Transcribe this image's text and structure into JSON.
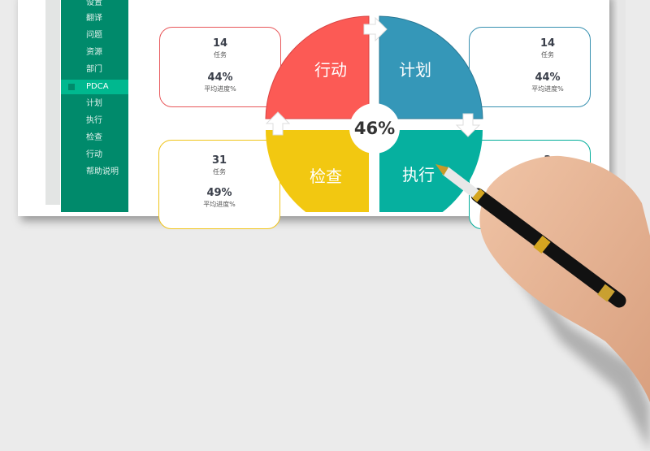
{
  "sidebar": {
    "items": [
      {
        "label": "设置"
      },
      {
        "label": "翻译"
      },
      {
        "label": "问题"
      },
      {
        "label": "资源"
      },
      {
        "label": "部门"
      },
      {
        "label": "PDCA",
        "active": true
      },
      {
        "label": "计划"
      },
      {
        "label": "执行"
      },
      {
        "label": "检查"
      },
      {
        "label": "行动"
      },
      {
        "label": "帮助说明"
      }
    ]
  },
  "cards": {
    "action": {
      "count": "14",
      "count_label": "任务",
      "progress": "44%",
      "progress_label": "平均进度%",
      "color": "#e8575a"
    },
    "plan": {
      "count": "14",
      "count_label": "任务",
      "progress": "44%",
      "progress_label": "平均进度%",
      "color": "#3790b0"
    },
    "check": {
      "count": "31",
      "count_label": "任务",
      "progress": "49%",
      "progress_label": "平均进度%",
      "color": "#f0c419"
    },
    "do": {
      "count": "2",
      "color": "#00ad9a"
    }
  },
  "pdca": {
    "action": "行动",
    "plan": "计划",
    "check": "检查",
    "do": "执行",
    "overall": "46%",
    "colors": {
      "action": "#fc5a55",
      "plan": "#3597b8",
      "check": "#f2c811",
      "do": "#06b09f"
    }
  },
  "sidebar_color": "#008a6b",
  "sidebar_active_color": "#00b88f"
}
